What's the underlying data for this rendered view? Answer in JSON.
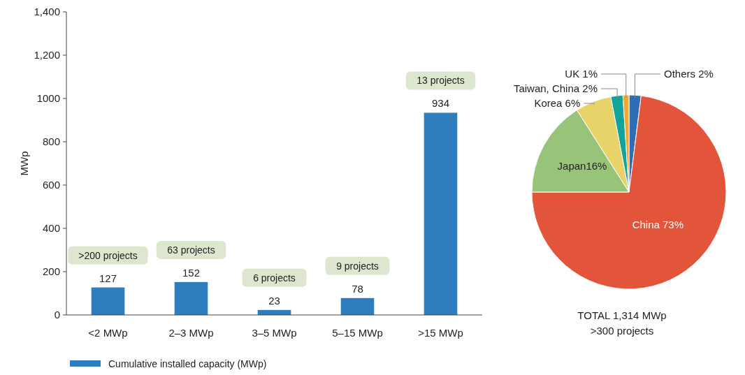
{
  "chart_data": [
    {
      "type": "bar",
      "ylabel": "MWp",
      "categories": [
        "<2 MWp",
        "2–3 MWp",
        "3–5 MWp",
        "5–15 MWp",
        ">15 MWp"
      ],
      "series": [
        {
          "name": "Cumulative installed capacity (MWp)",
          "color": "#2e7ebf",
          "values": [
            127,
            152,
            23,
            78,
            934
          ]
        }
      ],
      "ylim": [
        0,
        1400
      ],
      "yticks": [
        0,
        200,
        400,
        600,
        800,
        {
          "value": 1000,
          "label": "1000"
        },
        {
          "value": 1200,
          "label": "1,200"
        },
        {
          "value": 1400,
          "label": "1,400"
        }
      ],
      "data_labels": true,
      "legend": "bottom",
      "grid": false,
      "annotations": [
        {
          "text": ">200 projects",
          "x": "<2 MWp",
          "y": 127
        },
        {
          "text": "63 projects",
          "x": "2–3 MWp",
          "y": 152
        },
        {
          "text": "6 projects",
          "x": "3–5 MWp",
          "y": 23
        },
        {
          "text": "9 projects",
          "x": "5–15 MWp",
          "y": 78
        },
        {
          "text": "13 projects",
          "x": ">15 MWp",
          "y": 934
        }
      ]
    },
    {
      "type": "pie",
      "categories": [
        "Others 2%",
        "China 73%",
        "Japan16%",
        "Korea 6%",
        "Taiwan, China 2%",
        "UK 1%"
      ],
      "values": [
        2,
        73,
        16,
        6,
        2,
        1
      ],
      "colors": [
        "#2f6db5",
        "#e3553b",
        "#98c47a",
        "#e8d36a",
        "#12a39a",
        "#f0a830"
      ],
      "annotations": [
        "TOTAL 1,314 MWp",
        ">300 projects"
      ]
    }
  ]
}
